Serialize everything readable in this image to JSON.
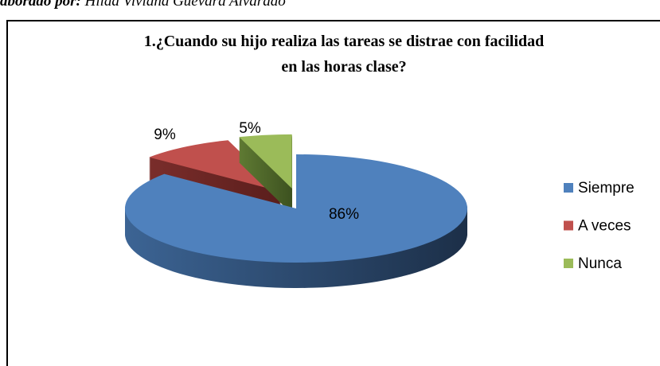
{
  "caption": {
    "label": "aborado por:",
    "author": "Hilda Viviana Guevara Alvarado"
  },
  "chart_data": {
    "type": "pie",
    "title": "1.¿Cuando su hijo realiza las tareas se distrae con facilidad en las horas clase?",
    "categories": [
      "Siempre",
      "A veces",
      "Nunca"
    ],
    "values": [
      86,
      9,
      5
    ],
    "value_labels": [
      "86%",
      "9%",
      "5%"
    ],
    "colors": [
      "#4f81bd",
      "#c0504d",
      "#9bbb59"
    ],
    "explode": [
      false,
      true,
      true
    ],
    "legend": "right"
  }
}
